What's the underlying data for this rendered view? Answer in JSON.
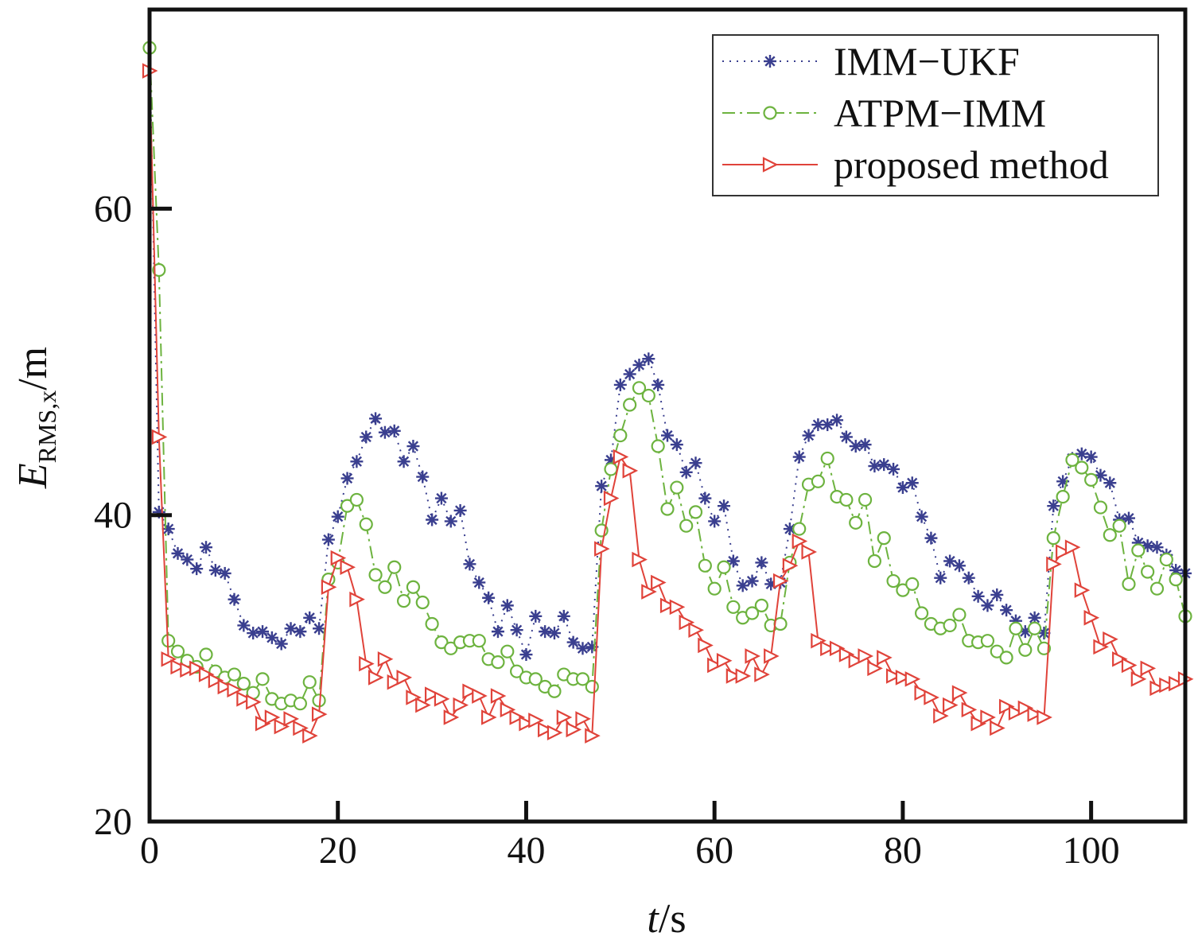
{
  "chart_data": {
    "type": "line",
    "xlabel_var": "t",
    "xlabel_unit": "/s",
    "ylabel_var": "E",
    "ylabel_sub": "RMS,x",
    "ylabel_unit": "/m",
    "xlim": [
      0,
      110
    ],
    "ylim": [
      20,
      73
    ],
    "xticks": [
      0,
      20,
      40,
      60,
      80,
      100
    ],
    "yticks": [
      20,
      40,
      60
    ],
    "grid": false,
    "legend_position": "top-right",
    "series": [
      {
        "name": "IMM−UKF",
        "color": "#3a3f8f",
        "line_style": "dotted",
        "marker": "asterisk",
        "x": [
          0,
          1,
          2,
          3,
          4,
          5,
          6,
          7,
          8,
          9,
          10,
          11,
          12,
          13,
          14,
          15,
          16,
          17,
          18,
          19,
          20,
          21,
          22,
          23,
          24,
          25,
          26,
          27,
          28,
          29,
          30,
          31,
          32,
          33,
          34,
          35,
          36,
          37,
          38,
          39,
          40,
          41,
          42,
          43,
          44,
          45,
          46,
          47,
          48,
          49,
          50,
          51,
          52,
          53,
          54,
          55,
          56,
          57,
          58,
          59,
          60,
          61,
          62,
          63,
          64,
          65,
          66,
          67,
          68,
          69,
          70,
          71,
          72,
          73,
          74,
          75,
          76,
          77,
          78,
          79,
          80,
          81,
          82,
          83,
          84,
          85,
          86,
          87,
          88,
          89,
          90,
          91,
          92,
          93,
          94,
          95,
          96,
          97,
          98,
          99,
          100,
          101,
          102,
          103,
          104,
          105,
          106,
          107,
          108,
          109,
          110
        ],
        "values": [
          70.5,
          40.2,
          39.1,
          37.5,
          37.1,
          36.5,
          37.9,
          36.4,
          36.2,
          34.5,
          32.8,
          32.3,
          32.4,
          32,
          31.6,
          32.6,
          32.4,
          33.3,
          32.6,
          38.4,
          39.9,
          42.4,
          43.5,
          45.1,
          46.3,
          45.4,
          45.5,
          43.5,
          44.5,
          42.5,
          39.7,
          41.1,
          39.6,
          40.3,
          36.8,
          35.6,
          34.6,
          32.4,
          34.1,
          32.5,
          30.9,
          33.4,
          32.4,
          32.3,
          33.4,
          31.7,
          31.3,
          31.4,
          41.9,
          43.6,
          48.5,
          49.2,
          49.8,
          50.2,
          48.5,
          45.2,
          44.6,
          42.8,
          43.4,
          41.1,
          39.6,
          40.6,
          37,
          35.4,
          35.7,
          36.9,
          35.5,
          35.6,
          39.1,
          43.8,
          45.2,
          45.9,
          45.9,
          46.2,
          45.1,
          44.5,
          44.6,
          43.2,
          43.3,
          43,
          41.8,
          42.1,
          39.9,
          38.5,
          35.9,
          37,
          36.7,
          35.9,
          34.7,
          34.1,
          34.8,
          33.8,
          33.1,
          32.4,
          33.3,
          32.3,
          40.6,
          42.2,
          43.7,
          44,
          43.8,
          42.6,
          42.1,
          39.7,
          39.8,
          38.2,
          38,
          37.9,
          37.4,
          36.4,
          36.2
        ]
      },
      {
        "name": "ATPM−IMM",
        "color": "#6db33f",
        "line_style": "dashdot",
        "marker": "circle",
        "x": [
          0,
          1,
          2,
          3,
          4,
          5,
          6,
          7,
          8,
          9,
          10,
          11,
          12,
          13,
          14,
          15,
          16,
          17,
          18,
          19,
          20,
          21,
          22,
          23,
          24,
          25,
          26,
          27,
          28,
          29,
          30,
          31,
          32,
          33,
          34,
          35,
          36,
          37,
          38,
          39,
          40,
          41,
          42,
          43,
          44,
          45,
          46,
          47,
          48,
          49,
          50,
          51,
          52,
          53,
          54,
          55,
          56,
          57,
          58,
          59,
          60,
          61,
          62,
          63,
          64,
          65,
          66,
          67,
          68,
          69,
          70,
          71,
          72,
          73,
          74,
          75,
          76,
          77,
          78,
          79,
          80,
          81,
          82,
          83,
          84,
          85,
          86,
          87,
          88,
          89,
          90,
          91,
          92,
          93,
          94,
          95,
          96,
          97,
          98,
          99,
          100,
          101,
          102,
          103,
          104,
          105,
          106,
          107,
          108,
          109,
          110
        ],
        "values": [
          70.5,
          56,
          31.8,
          31.1,
          30.5,
          30.1,
          30.9,
          29.8,
          29.4,
          29.6,
          29,
          28.4,
          29.3,
          28,
          27.7,
          27.9,
          27.7,
          29.1,
          27.9,
          35.8,
          36.9,
          40.6,
          41,
          39.4,
          36.1,
          35.3,
          36.6,
          34.4,
          35.3,
          34.3,
          32.9,
          31.7,
          31.3,
          31.7,
          31.8,
          31.8,
          30.6,
          30.4,
          31.1,
          29.8,
          29.4,
          29.3,
          28.8,
          28.5,
          29.6,
          29.3,
          29.3,
          28.8,
          39,
          43,
          45.2,
          47.2,
          48.3,
          47.8,
          44.5,
          40.4,
          41.8,
          39.3,
          40.2,
          36.7,
          35.2,
          36.6,
          34,
          33.3,
          33.6,
          34.1,
          32.8,
          32.9,
          36.9,
          39.1,
          42,
          42.2,
          43.7,
          41.2,
          41,
          39.5,
          41,
          37,
          38.5,
          35.7,
          35.1,
          35.5,
          33.6,
          32.9,
          32.6,
          32.8,
          33.5,
          31.8,
          31.7,
          31.8,
          31.1,
          30.7,
          32.6,
          31.2,
          32.6,
          31.3,
          38.5,
          41.2,
          43.6,
          43.1,
          42.3,
          40.5,
          38.7,
          39.3,
          35.5,
          37.7,
          36.3,
          35.2,
          37.1,
          35.8,
          33.4
        ]
      },
      {
        "name": "proposed method",
        "color": "#e0433a",
        "line_style": "solid",
        "marker": "triangle-right",
        "x": [
          0,
          1,
          2,
          3,
          4,
          5,
          6,
          7,
          8,
          9,
          10,
          11,
          12,
          13,
          14,
          15,
          16,
          17,
          18,
          19,
          20,
          21,
          22,
          23,
          24,
          25,
          26,
          27,
          28,
          29,
          30,
          31,
          32,
          33,
          34,
          35,
          36,
          37,
          38,
          39,
          40,
          41,
          42,
          43,
          44,
          45,
          46,
          47,
          48,
          49,
          50,
          51,
          52,
          53,
          54,
          55,
          56,
          57,
          58,
          59,
          60,
          61,
          62,
          63,
          64,
          65,
          66,
          67,
          68,
          69,
          70,
          71,
          72,
          73,
          74,
          75,
          76,
          77,
          78,
          79,
          80,
          81,
          82,
          83,
          84,
          85,
          86,
          87,
          88,
          89,
          90,
          91,
          92,
          93,
          94,
          95,
          96,
          97,
          98,
          99,
          100,
          101,
          102,
          103,
          104,
          105,
          106,
          107,
          108,
          109,
          110
        ],
        "values": [
          69,
          45.1,
          30.6,
          30.1,
          29.9,
          30,
          29.6,
          29.2,
          28.8,
          28.6,
          28,
          27.8,
          26.4,
          26.8,
          26.2,
          26.7,
          26.1,
          25.6,
          27,
          35.3,
          37.2,
          36.6,
          34.5,
          30.3,
          29.4,
          30.6,
          29.1,
          29.4,
          28.1,
          27.6,
          28.3,
          28,
          26.8,
          27.6,
          28.5,
          28.2,
          26.8,
          28.2,
          27.3,
          26.8,
          26.4,
          26.6,
          26,
          25.8,
          26.8,
          26,
          26.7,
          25.6,
          37.8,
          41.1,
          43.8,
          42.9,
          37.1,
          35,
          35.6,
          34.1,
          34,
          33,
          32.5,
          31.5,
          30.2,
          30.5,
          29.5,
          29.5,
          30.8,
          29.6,
          30.8,
          35.7,
          36.7,
          38.3,
          37.6,
          31.8,
          31.3,
          31.3,
          30.9,
          30.5,
          30.8,
          30,
          30.7,
          29.5,
          29.4,
          29.3,
          28.4,
          28.1,
          26.9,
          27.6,
          28.4,
          27.3,
          26.4,
          26.8,
          26.1,
          27.5,
          27.1,
          27.4,
          27,
          26.8,
          36.8,
          37.6,
          37.9,
          35.1,
          33.3,
          31.4,
          31.9,
          30.6,
          30.2,
          29.3,
          30,
          28.7,
          28.9,
          29,
          29.3
        ]
      }
    ]
  }
}
